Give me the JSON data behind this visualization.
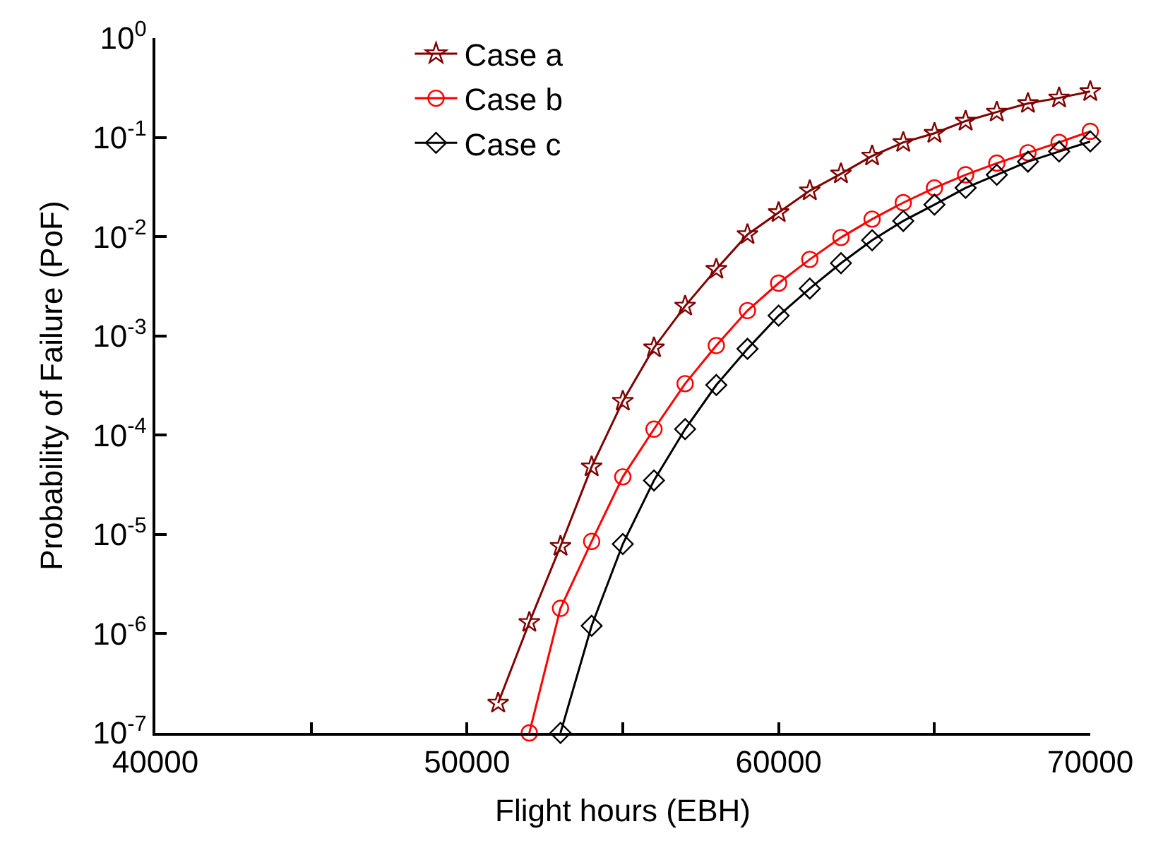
{
  "chart_data": {
    "type": "line",
    "xlabel": "Flight hours (EBH)",
    "ylabel": "Probability of Failure (PoF)",
    "log": "y",
    "legend": "top",
    "line_style": "solid",
    "xlim": [
      40000,
      70000
    ],
    "xticks": [
      40000,
      {
        "value": 45000,
        "label": null
      },
      50000,
      {
        "value": 55000,
        "label": null
      },
      60000,
      {
        "value": 65000,
        "label": null
      },
      70000
    ],
    "ylim": [
      1e-07,
      1
    ],
    "yticks": [
      {
        "value": 1e-07,
        "label": "10$^{-7}$"
      },
      {
        "value": 1e-06,
        "label": "10$^{-6}$"
      },
      {
        "value": 1e-05,
        "label": "10$^{-5}$"
      },
      {
        "value": 0.0001,
        "label": "10$^{-4}$"
      },
      {
        "value": 0.001,
        "label": "10$^{-3}$"
      },
      {
        "value": 0.01,
        "label": "10$^{-2}$"
      },
      {
        "value": 0.1,
        "label": "10$^{-1}$"
      },
      {
        "value": 1,
        "label": "10$^{0}$"
      }
    ],
    "series": [
      {
        "name": "Case a",
        "color": "#800000",
        "marker": "star",
        "x": [
          51000,
          52000,
          53000,
          54000,
          55000,
          56000,
          57000,
          58000,
          59000,
          60000,
          61000,
          62000,
          63000,
          64000,
          65000,
          66000,
          67000,
          68000,
          69000,
          70000
        ],
        "values": [
          2e-07,
          1.3e-06,
          7.6e-06,
          4.8e-05,
          0.00022,
          0.00076,
          0.002,
          0.0047,
          0.0105,
          0.0175,
          0.029,
          0.043,
          0.065,
          0.089,
          0.11,
          0.146,
          0.18,
          0.22,
          0.25,
          0.29
        ]
      },
      {
        "name": "Case b",
        "color": "#ff0000",
        "marker": "circle",
        "x": [
          52000,
          53000,
          54000,
          55000,
          56000,
          57000,
          58000,
          59000,
          60000,
          61000,
          62000,
          63000,
          64000,
          65000,
          66000,
          67000,
          68000,
          69000,
          70000
        ],
        "values": [
          1e-07,
          1.8e-06,
          8.5e-06,
          3.8e-05,
          0.000115,
          0.00033,
          0.0008,
          0.0018,
          0.0034,
          0.0059,
          0.0098,
          0.015,
          0.022,
          0.031,
          0.042,
          0.055,
          0.07,
          0.089,
          0.115
        ]
      },
      {
        "name": "Case c",
        "color": "#000000",
        "marker": "diamond",
        "x": [
          53000,
          54000,
          55000,
          56000,
          57000,
          58000,
          59000,
          60000,
          61000,
          62000,
          63000,
          64000,
          65000,
          66000,
          67000,
          68000,
          69000,
          70000
        ],
        "values": [
          1e-07,
          1.2e-06,
          8e-06,
          3.5e-05,
          0.000115,
          0.00032,
          0.00074,
          0.0016,
          0.003,
          0.0054,
          0.0092,
          0.0144,
          0.021,
          0.031,
          0.042,
          0.057,
          0.072,
          0.091
        ]
      }
    ]
  }
}
